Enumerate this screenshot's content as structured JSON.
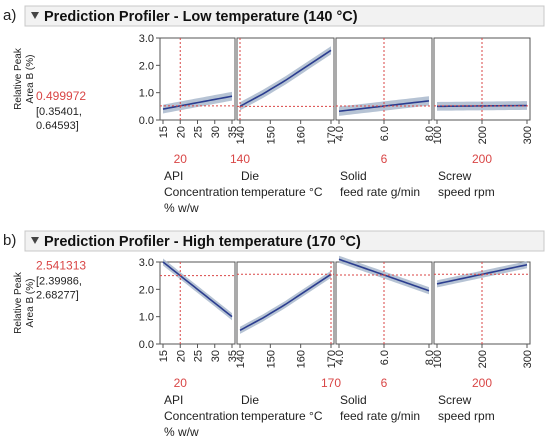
{
  "chart_data": [
    {
      "type": "line",
      "panel_label": "a)",
      "title": "Prediction Profiler - Low temperature (140 °C)",
      "ylabel_lines": [
        "Relative Peak",
        "Area B (%)"
      ],
      "ylim": [
        0,
        3
      ],
      "yticks": [
        "0.0",
        "1.0",
        "2.0",
        "3.0"
      ],
      "prediction": "0.499972",
      "interval": [
        "[0.35401,",
        "0.64593]"
      ],
      "factors": [
        {
          "label_lines": [
            "API",
            "Concentration",
            "% w/w"
          ],
          "xlim": [
            15,
            35
          ],
          "ticks": [
            "15",
            "20",
            "25",
            "30",
            "35"
          ],
          "current": 20,
          "current_label": "20",
          "x": [
            15,
            35
          ],
          "y": [
            0.4,
            0.87
          ],
          "band": 0.16
        },
        {
          "label_lines": [
            "Die",
            "temperature °C"
          ],
          "xlim": [
            140,
            170
          ],
          "ticks": [
            "140",
            "150",
            "160",
            "170"
          ],
          "current": 140,
          "current_label": "140",
          "x": [
            140,
            147.5,
            155,
            162.5,
            170
          ],
          "y": [
            0.5,
            0.95,
            1.45,
            2.0,
            2.55
          ],
          "band": 0.15
        },
        {
          "label_lines": [
            "Solid",
            "feed rate g/min"
          ],
          "xlim": [
            4,
            8
          ],
          "ticks": [
            "4.0",
            "6.0",
            "8.0"
          ],
          "current": 6,
          "current_label": "6",
          "x": [
            4,
            8
          ],
          "y": [
            0.32,
            0.7
          ],
          "band": 0.17
        },
        {
          "label_lines": [
            "Screw",
            "speed rpm"
          ],
          "xlim": [
            100,
            300
          ],
          "ticks": [
            "100",
            "200",
            "300"
          ],
          "current": 200,
          "current_label": "200",
          "x": [
            100,
            300
          ],
          "y": [
            0.5,
            0.53
          ],
          "band": 0.16
        }
      ]
    },
    {
      "type": "line",
      "panel_label": "b)",
      "title": "Prediction Profiler - High temperature (170 °C)",
      "ylabel_lines": [
        "Relative Peak",
        "Area B (%)"
      ],
      "ylim": [
        0,
        3
      ],
      "yticks": [
        "0.0",
        "1.0",
        "2.0",
        "3.0"
      ],
      "prediction": "2.541313",
      "interval": [
        "[2.39986,",
        "2.68277]"
      ],
      "factors": [
        {
          "label_lines": [
            "API",
            "Concentration",
            "% w/w"
          ],
          "xlim": [
            15,
            35
          ],
          "ticks": [
            "15",
            "20",
            "25",
            "30",
            "35"
          ],
          "current": 20,
          "current_label": "20",
          "x": [
            15,
            35
          ],
          "y": [
            3.0,
            1.0
          ],
          "band": 0.13
        },
        {
          "label_lines": [
            "Die",
            "temperature °C"
          ],
          "xlim": [
            140,
            170
          ],
          "ticks": [
            "140",
            "150",
            "160",
            "170"
          ],
          "current": 170,
          "current_label": "170",
          "x": [
            140,
            147.5,
            155,
            162.5,
            170
          ],
          "y": [
            0.5,
            0.95,
            1.45,
            2.0,
            2.55
          ],
          "band": 0.13
        },
        {
          "label_lines": [
            "Solid",
            "feed rate g/min"
          ],
          "xlim": [
            4,
            8
          ],
          "ticks": [
            "4.0",
            "6.0",
            "8.0"
          ],
          "current": 6,
          "current_label": "6",
          "x": [
            4,
            8
          ],
          "y": [
            3.1,
            1.95
          ],
          "band": 0.13
        },
        {
          "label_lines": [
            "Screw",
            "speed rpm"
          ],
          "xlim": [
            100,
            300
          ],
          "ticks": [
            "100",
            "200",
            "300"
          ],
          "current": 200,
          "current_label": "200",
          "x": [
            100,
            300
          ],
          "y": [
            2.2,
            2.9
          ],
          "band": 0.13
        }
      ]
    }
  ],
  "colors": {
    "header_bg": "#f2f2f2",
    "header_border": "#c8c8c8",
    "axis": "#555555",
    "line": "#2b3d8f",
    "band": "#a9b8cc",
    "reference": "#d94646",
    "highlight": "#d94646"
  }
}
